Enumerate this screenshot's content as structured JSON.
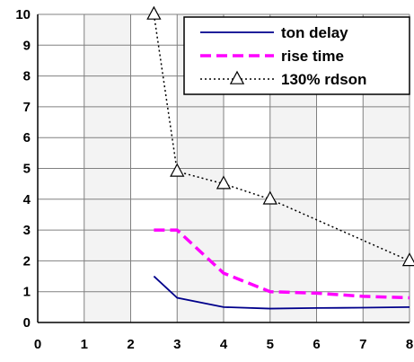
{
  "chart_data": {
    "type": "line",
    "title": "",
    "xlabel": "",
    "ylabel": "",
    "xlim": [
      0,
      8
    ],
    "ylim": [
      0,
      10
    ],
    "x_ticks": [
      "0",
      "1",
      "2",
      "3",
      "4",
      "5",
      "6",
      "7",
      "8"
    ],
    "y_ticks": [
      "0",
      "1",
      "2",
      "3",
      "4",
      "5",
      "6",
      "7",
      "8",
      "9",
      "10"
    ],
    "grid": true,
    "legend_position": "top-right",
    "series": [
      {
        "name": "ton delay",
        "color": "#00008b",
        "style": "solid",
        "marker": "none",
        "x": [
          2.5,
          3,
          4,
          5,
          6,
          7,
          8
        ],
        "y": [
          1.5,
          0.8,
          0.5,
          0.45,
          0.47,
          0.48,
          0.5
        ]
      },
      {
        "name": "rise time",
        "color": "#ff00ff",
        "style": "dashed",
        "marker": "none",
        "x": [
          2.5,
          3,
          4,
          5,
          6,
          7,
          8
        ],
        "y": [
          3,
          3,
          1.6,
          1.0,
          0.95,
          0.85,
          0.8
        ]
      },
      {
        "name": "130% rdson",
        "color": "#000000",
        "style": "dotted",
        "marker": "triangle",
        "x": [
          2.5,
          3,
          4,
          5,
          8
        ],
        "y": [
          10,
          4.9,
          4.5,
          4.0,
          2.0
        ]
      }
    ]
  }
}
